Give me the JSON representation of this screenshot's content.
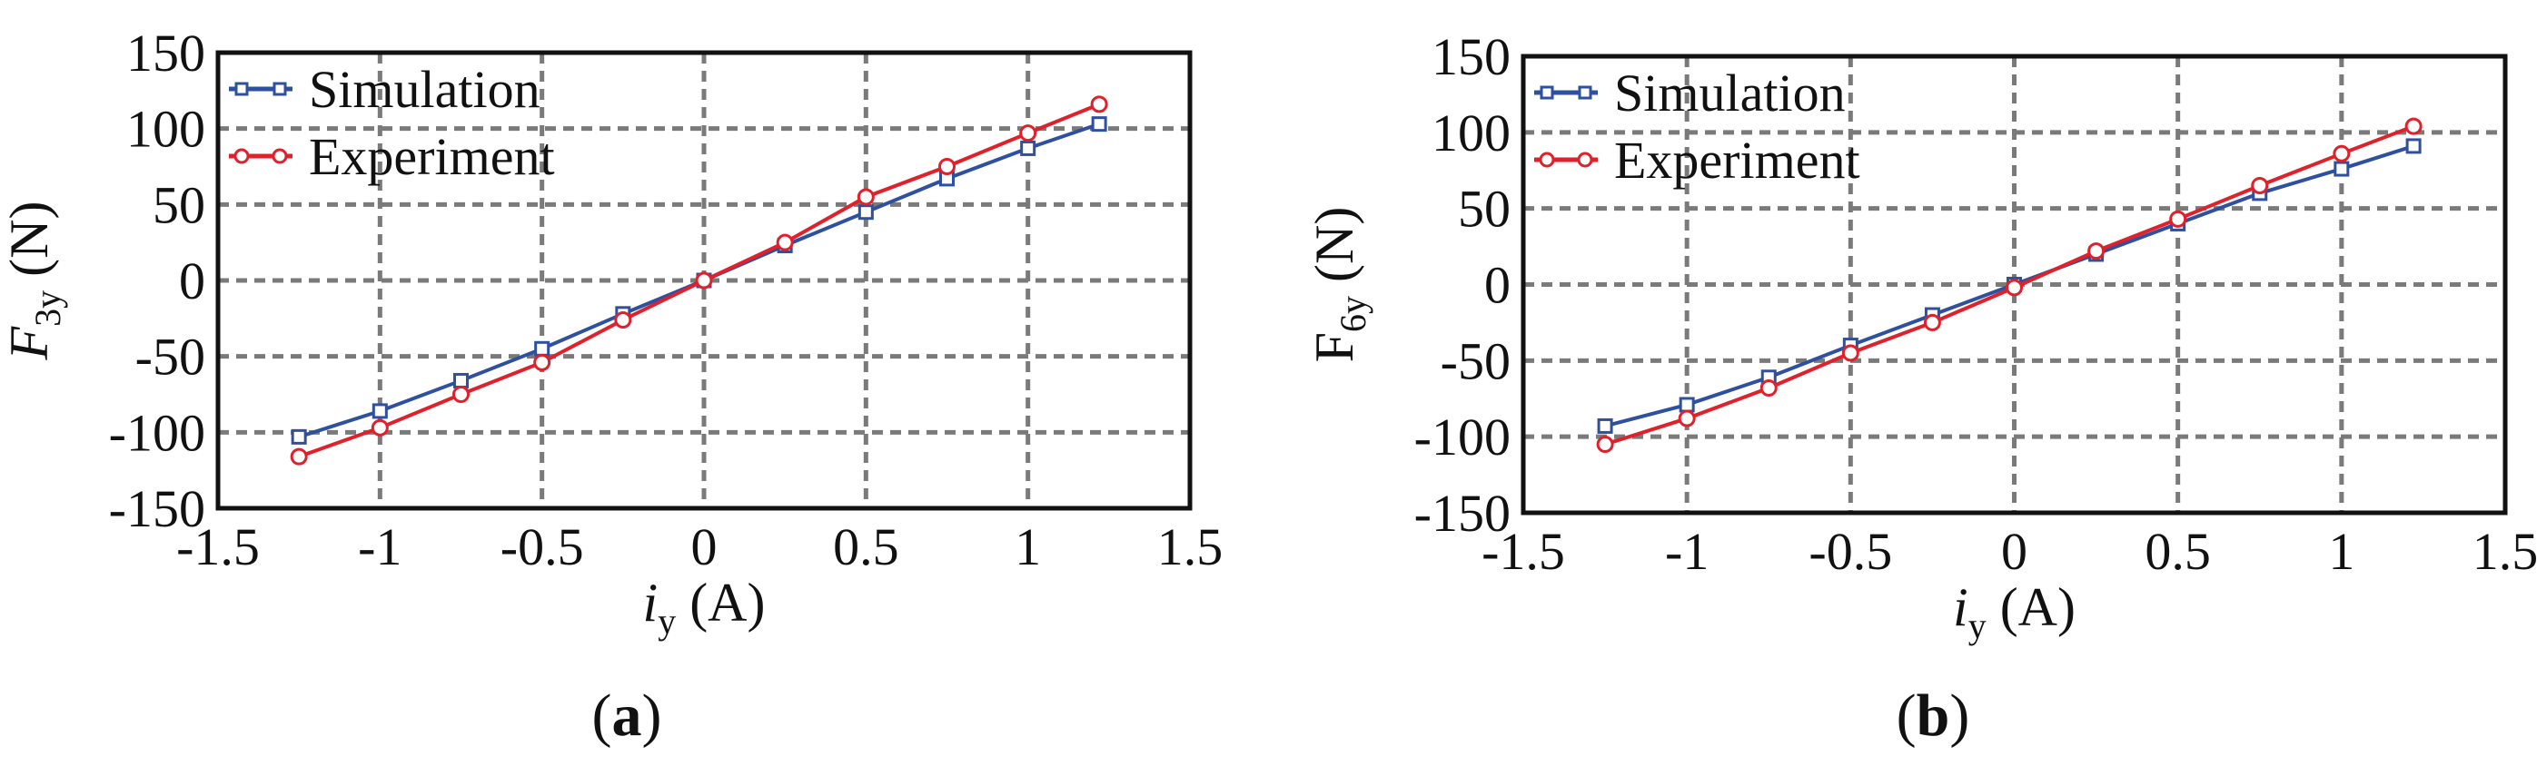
{
  "chart_data": [
    {
      "type": "line",
      "panel_label": "(a)",
      "xlabel": {
        "italic": "i",
        "sub": "y",
        "suffix": " (A)"
      },
      "ylabel": {
        "main": "F",
        "sub": "3y",
        "suffix": " (N)",
        "italic_main": true
      },
      "xlim": [
        -1.5,
        1.5
      ],
      "ylim": [
        -150,
        150
      ],
      "xticks": [
        -1.5,
        -1,
        -0.5,
        0,
        0.5,
        1,
        1.5
      ],
      "yticks": [
        -150,
        -100,
        -50,
        0,
        50,
        100,
        150
      ],
      "xtick_labels": [
        "-1.5",
        "-1",
        "-0.5",
        "0",
        "0.5",
        "1",
        "1.5"
      ],
      "ytick_labels": [
        "-150",
        "-100",
        "-50",
        "0",
        "50",
        "100",
        "150"
      ],
      "grid": true,
      "legend_position": "top-left",
      "series": [
        {
          "name": "Simulation",
          "color": "#2f4f9f",
          "marker": "square",
          "x": [
            -1.25,
            -1.0,
            -0.75,
            -0.5,
            -0.25,
            0,
            0.25,
            0.5,
            0.75,
            1.0,
            1.22
          ],
          "y": [
            -103,
            -86,
            -66,
            -45,
            -22,
            0,
            23,
            45,
            67,
            87,
            103
          ]
        },
        {
          "name": "Experiment",
          "color": "#e0202a",
          "marker": "circle",
          "x": [
            -1.25,
            -1.0,
            -0.75,
            -0.5,
            -0.25,
            0,
            0.25,
            0.5,
            0.75,
            1.0,
            1.22
          ],
          "y": [
            -116,
            -97,
            -75,
            -54,
            -26,
            0,
            25,
            55,
            75,
            97,
            116
          ]
        }
      ]
    },
    {
      "type": "line",
      "panel_label": "(b)",
      "xlabel": {
        "italic": "i",
        "sub": "y",
        "suffix": " (A)"
      },
      "ylabel": {
        "main": "F",
        "sub": "6y",
        "suffix": " (N)",
        "italic_main": false
      },
      "xlim": [
        -1.5,
        1.5
      ],
      "ylim": [
        -150,
        150
      ],
      "xticks": [
        -1.5,
        -1,
        -0.5,
        0,
        0.5,
        1,
        1.5
      ],
      "yticks": [
        -150,
        -100,
        -50,
        0,
        50,
        100,
        150
      ],
      "xtick_labels": [
        "-1.5",
        "-1",
        "-0.5",
        "0",
        "0.5",
        "1",
        "1.5"
      ],
      "ytick_labels": [
        "-150",
        "-100",
        "-50",
        "0",
        "50",
        "100",
        "150"
      ],
      "grid": true,
      "legend_position": "top-left",
      "series": [
        {
          "name": "Simulation",
          "color": "#2f4f9f",
          "marker": "square",
          "x": [
            -1.25,
            -1.0,
            -0.75,
            -0.5,
            -0.25,
            0,
            0.25,
            0.5,
            0.75,
            1.0,
            1.22
          ],
          "y": [
            -93,
            -79,
            -61,
            -40,
            -20,
            0,
            20,
            40,
            60,
            76,
            91
          ]
        },
        {
          "name": "Experiment",
          "color": "#e0202a",
          "marker": "circle",
          "x": [
            -1.25,
            -1.0,
            -0.75,
            -0.5,
            -0.25,
            0,
            0.25,
            0.5,
            0.75,
            1.0,
            1.22
          ],
          "y": [
            -105,
            -88,
            -68,
            -45,
            -25,
            -2,
            22,
            43,
            65,
            86,
            104
          ]
        }
      ]
    }
  ]
}
